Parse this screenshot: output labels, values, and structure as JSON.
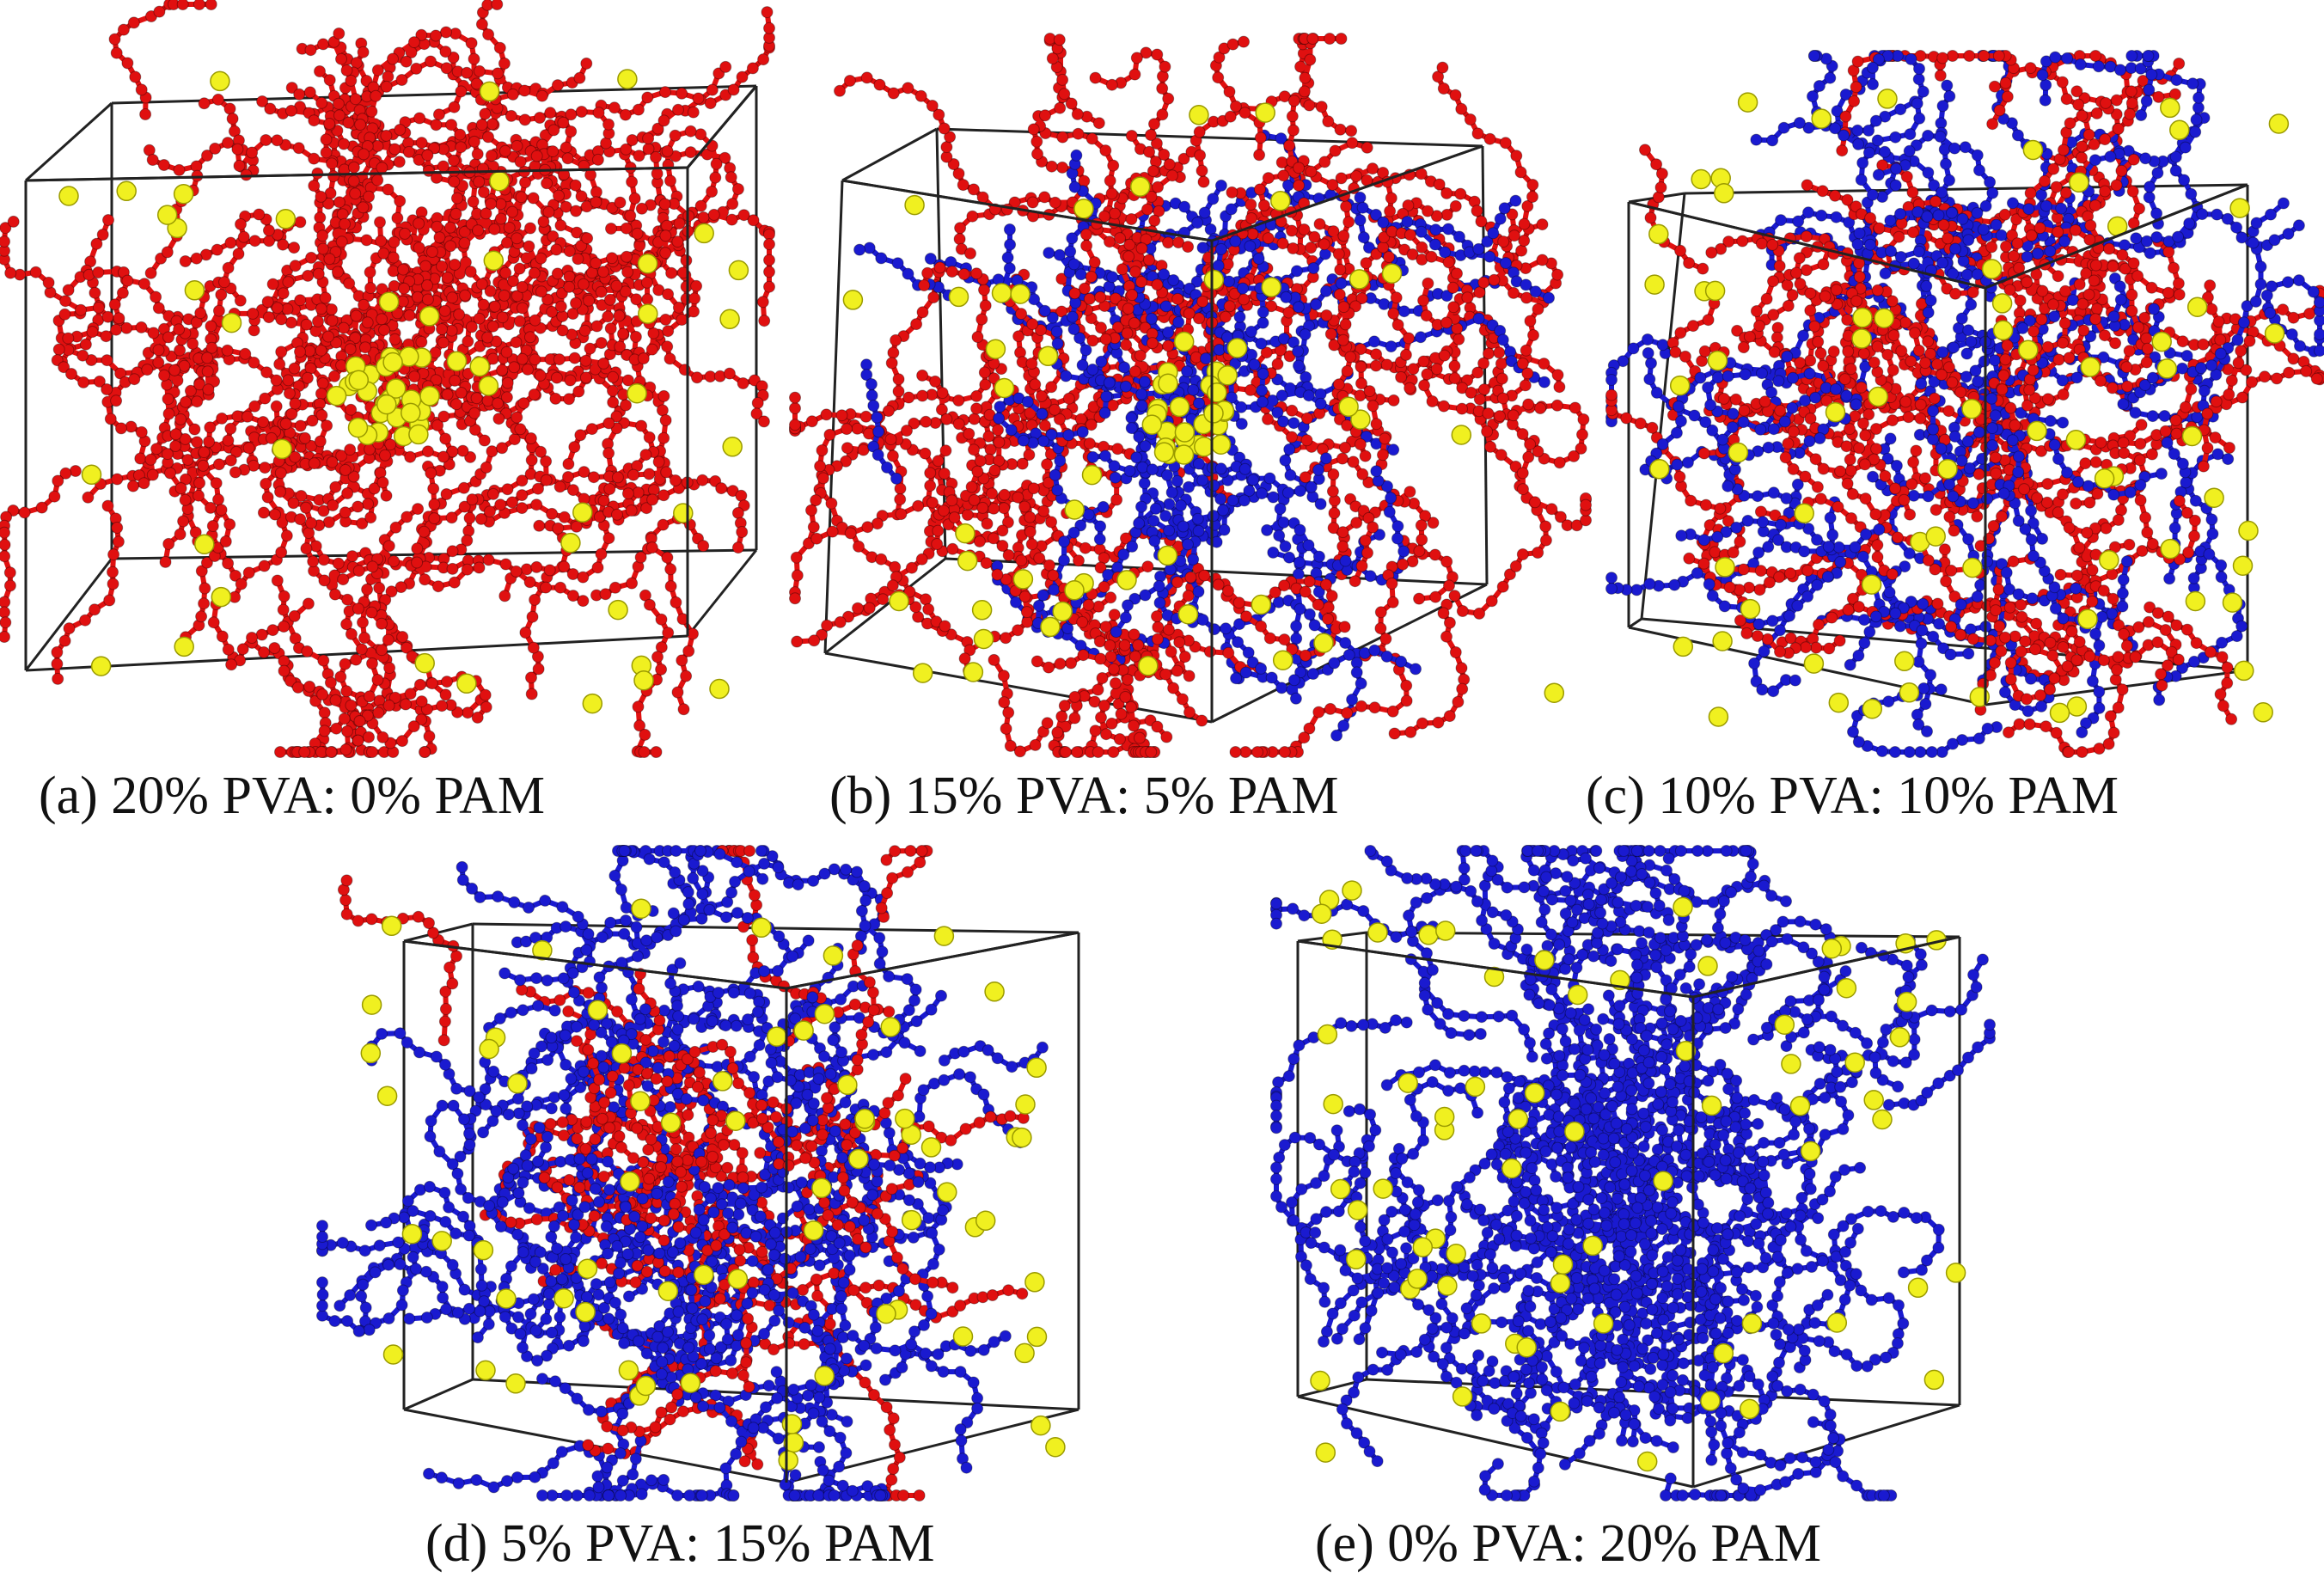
{
  "figure": {
    "panels": [
      {
        "id": "a",
        "caption": "(a) 20% PVA: 0% PAM",
        "pva_percent": 20,
        "pam_percent": 0
      },
      {
        "id": "b",
        "caption": "(b) 15% PVA: 5% PAM",
        "pva_percent": 15,
        "pam_percent": 5
      },
      {
        "id": "c",
        "caption": "(c) 10% PVA: 10% PAM",
        "pva_percent": 10,
        "pam_percent": 10
      },
      {
        "id": "d",
        "caption": "(d) 5% PVA: 15% PAM",
        "pva_percent": 5,
        "pam_percent": 15
      },
      {
        "id": "e",
        "caption": "(e) 0% PVA: 20% PAM",
        "pva_percent": 0,
        "pam_percent": 20
      }
    ],
    "colors": {
      "pva": "#e01010",
      "pam": "#1a1ad0",
      "particle": "#f0f020",
      "box_edge": "#222222"
    }
  }
}
